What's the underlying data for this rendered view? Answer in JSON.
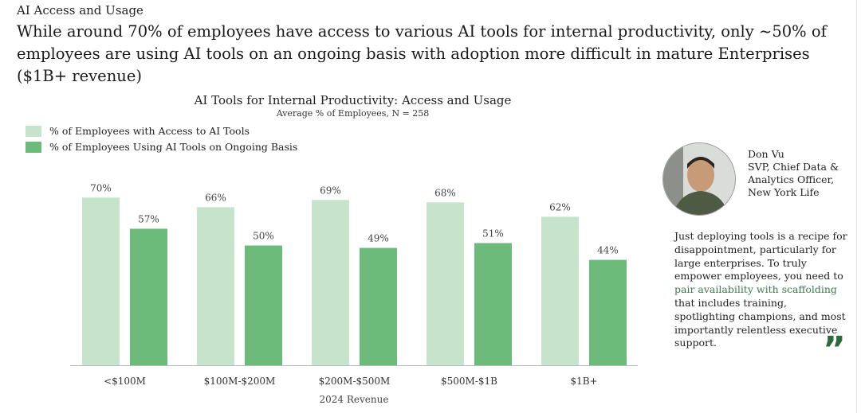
{
  "section_label": "AI Access and Usage",
  "headline": "While around 70% of employees have access to various AI tools for internal productivity, only ~50% of employees are using AI tools on an ongoing basis with adoption more difficult in mature Enterprises ($1B+ revenue)",
  "chart_data": {
    "type": "bar",
    "title": "AI Tools for Internal Productivity: Access and Usage",
    "subtitle": "Average % of Employees, N = 258",
    "xlabel": "2024 Revenue",
    "ylabel": "",
    "ylim": [
      0,
      80
    ],
    "grid": false,
    "legend_position": "top-left",
    "categories": [
      "<$100M",
      "$100M-$200M",
      "$200M-$500M",
      "$500M-$1B",
      "$1B+"
    ],
    "series": [
      {
        "name": "% of Employees with Access to AI Tools",
        "color": "#c5e4cb",
        "values": [
          70,
          66,
          69,
          68,
          62
        ]
      },
      {
        "name": "% of Employees Using AI Tools on Ongoing Basis",
        "color": "#6dbb7a",
        "values": [
          57,
          50,
          49,
          51,
          44
        ]
      }
    ]
  },
  "quote_panel": {
    "name": "Don Vu",
    "title_lines": [
      "SVP, Chief Data &",
      "Analytics Officer,",
      "New York Life"
    ],
    "quote_before": "Just deploying tools is a recipe for disappointment, particularly for large enterprises. To truly empower employees, you need to ",
    "quote_highlight": "pair availability with scaffolding",
    "quote_after": " that includes training, spotlighting champions, and most importantly relentless executive support.",
    "quote_mark": "”"
  }
}
